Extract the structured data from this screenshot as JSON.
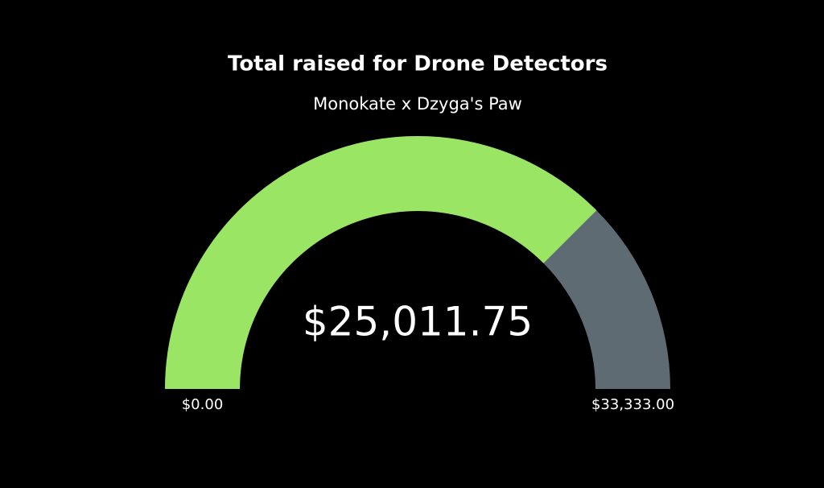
{
  "chart_data": {
    "type": "gauge",
    "title": "Total raised for Drone Detectors",
    "subtitle": "Monokate x Dzyga's Paw",
    "value": 25011.75,
    "value_label": "$25,011.75",
    "ylim": [
      0,
      33333
    ],
    "yticks": [
      {
        "value": 0,
        "label": "$0.00"
      },
      {
        "value": 33333,
        "label": "$33,333.00"
      }
    ],
    "color": "#9be564",
    "track_color": "#5f6b73"
  }
}
